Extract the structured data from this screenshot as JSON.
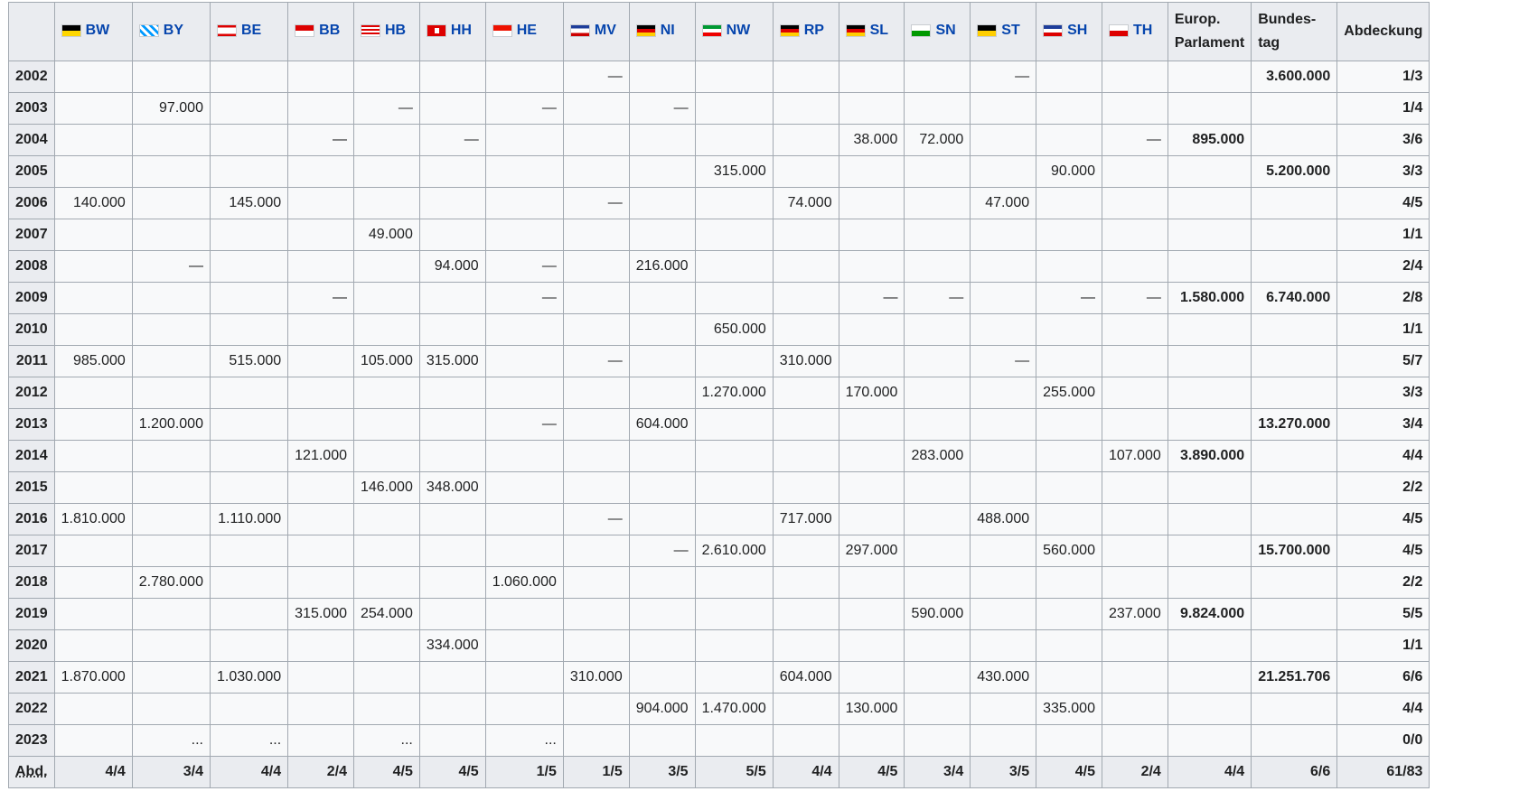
{
  "table": {
    "states": [
      {
        "code": "BW",
        "flag": "baden-wuerttemberg-flag-icon"
      },
      {
        "code": "BY",
        "flag": "bavaria-flag-icon"
      },
      {
        "code": "BE",
        "flag": "berlin-flag-icon"
      },
      {
        "code": "BB",
        "flag": "brandenburg-flag-icon"
      },
      {
        "code": "HB",
        "flag": "bremen-flag-icon"
      },
      {
        "code": "HH",
        "flag": "hamburg-flag-icon"
      },
      {
        "code": "HE",
        "flag": "hesse-flag-icon"
      },
      {
        "code": "MV",
        "flag": "mecklenburg-vorpommern-flag-icon"
      },
      {
        "code": "NI",
        "flag": "lower-saxony-flag-icon"
      },
      {
        "code": "NW",
        "flag": "north-rhine-westphalia-flag-icon"
      },
      {
        "code": "RP",
        "flag": "rhineland-palatinate-flag-icon"
      },
      {
        "code": "SL",
        "flag": "saarland-flag-icon"
      },
      {
        "code": "SN",
        "flag": "saxony-flag-icon"
      },
      {
        "code": "ST",
        "flag": "saxony-anhalt-flag-icon"
      },
      {
        "code": "SH",
        "flag": "schleswig-holstein-flag-icon"
      },
      {
        "code": "TH",
        "flag": "thuringia-flag-icon"
      }
    ],
    "extra_headers": [
      "Europ. Parlament",
      "Bundes-tag",
      "Abdeckung"
    ],
    "rows": [
      {
        "year": "2002",
        "cells": [
          "",
          "",
          "",
          "",
          "",
          "",
          "",
          "—",
          "",
          "",
          "",
          "",
          "",
          "—",
          "",
          "",
          "",
          "3.600.000",
          "1/3"
        ]
      },
      {
        "year": "2003",
        "cells": [
          "",
          "97.000",
          "",
          "",
          "—",
          "",
          "—",
          "",
          "—",
          "",
          "",
          "",
          "",
          "",
          "",
          "",
          "",
          "",
          "1/4"
        ]
      },
      {
        "year": "2004",
        "cells": [
          "",
          "",
          "",
          "—",
          "",
          "—",
          "",
          "",
          "",
          "",
          "",
          "38.000",
          "72.000",
          "",
          "",
          "—",
          "895.000",
          "",
          "3/6"
        ]
      },
      {
        "year": "2005",
        "cells": [
          "",
          "",
          "",
          "",
          "",
          "",
          "",
          "",
          "",
          "315.000",
          "",
          "",
          "",
          "",
          "90.000",
          "",
          "",
          "5.200.000",
          "3/3"
        ]
      },
      {
        "year": "2006",
        "cells": [
          "140.000",
          "",
          "145.000",
          "",
          "",
          "",
          "",
          "—",
          "",
          "",
          "74.000",
          "",
          "",
          "47.000",
          "",
          "",
          "",
          "",
          "4/5"
        ]
      },
      {
        "year": "2007",
        "cells": [
          "",
          "",
          "",
          "",
          "49.000",
          "",
          "",
          "",
          "",
          "",
          "",
          "",
          "",
          "",
          "",
          "",
          "",
          "",
          "1/1"
        ]
      },
      {
        "year": "2008",
        "cells": [
          "",
          "—",
          "",
          "",
          "",
          "94.000",
          "—",
          "",
          "216.000",
          "",
          "",
          "",
          "",
          "",
          "",
          "",
          "",
          "",
          "2/4"
        ]
      },
      {
        "year": "2009",
        "cells": [
          "",
          "",
          "",
          "—",
          "",
          "",
          "—",
          "",
          "",
          "",
          "",
          "—",
          "—",
          "",
          "—",
          "—",
          "1.580.000",
          "6.740.000",
          "2/8"
        ]
      },
      {
        "year": "2010",
        "cells": [
          "",
          "",
          "",
          "",
          "",
          "",
          "",
          "",
          "",
          "650.000",
          "",
          "",
          "",
          "",
          "",
          "",
          "",
          "",
          "1/1"
        ]
      },
      {
        "year": "2011",
        "cells": [
          "985.000",
          "",
          "515.000",
          "",
          "105.000",
          "315.000",
          "",
          "—",
          "",
          "",
          "310.000",
          "",
          "",
          "—",
          "",
          "",
          "",
          "",
          "5/7"
        ]
      },
      {
        "year": "2012",
        "cells": [
          "",
          "",
          "",
          "",
          "",
          "",
          "",
          "",
          "",
          "1.270.000",
          "",
          "170.000",
          "",
          "",
          "255.000",
          "",
          "",
          "",
          "3/3"
        ]
      },
      {
        "year": "2013",
        "cells": [
          "",
          "1.200.000",
          "",
          "",
          "",
          "",
          "—",
          "",
          "604.000",
          "",
          "",
          "",
          "",
          "",
          "",
          "",
          "",
          "13.270.000",
          "3/4"
        ]
      },
      {
        "year": "2014",
        "cells": [
          "",
          "",
          "",
          "121.000",
          "",
          "",
          "",
          "",
          "",
          "",
          "",
          "",
          "283.000",
          "",
          "",
          "107.000",
          "3.890.000",
          "",
          "4/4"
        ]
      },
      {
        "year": "2015",
        "cells": [
          "",
          "",
          "",
          "",
          "146.000",
          "348.000",
          "",
          "",
          "",
          "",
          "",
          "",
          "",
          "",
          "",
          "",
          "",
          "",
          "2/2"
        ]
      },
      {
        "year": "2016",
        "cells": [
          "1.810.000",
          "",
          "1.110.000",
          "",
          "",
          "",
          "",
          "—",
          "",
          "",
          "717.000",
          "",
          "",
          "488.000",
          "",
          "",
          "",
          "",
          "4/5"
        ]
      },
      {
        "year": "2017",
        "cells": [
          "",
          "",
          "",
          "",
          "",
          "",
          "",
          "",
          "—",
          "2.610.000",
          "",
          "297.000",
          "",
          "",
          "560.000",
          "",
          "",
          "15.700.000",
          "4/5"
        ]
      },
      {
        "year": "2018",
        "cells": [
          "",
          "2.780.000",
          "",
          "",
          "",
          "",
          "1.060.000",
          "",
          "",
          "",
          "",
          "",
          "",
          "",
          "",
          "",
          "",
          "",
          "2/2"
        ]
      },
      {
        "year": "2019",
        "cells": [
          "",
          "",
          "",
          "315.000",
          "254.000",
          "",
          "",
          "",
          "",
          "",
          "",
          "",
          "590.000",
          "",
          "",
          "237.000",
          "9.824.000",
          "",
          "5/5"
        ]
      },
      {
        "year": "2020",
        "cells": [
          "",
          "",
          "",
          "",
          "",
          "334.000",
          "",
          "",
          "",
          "",
          "",
          "",
          "",
          "",
          "",
          "",
          "",
          "",
          "1/1"
        ]
      },
      {
        "year": "2021",
        "cells": [
          "1.870.000",
          "",
          "1.030.000",
          "",
          "",
          "",
          "",
          "310.000",
          "",
          "",
          "604.000",
          "",
          "",
          "430.000",
          "",
          "",
          "",
          "21.251.706",
          "6/6"
        ]
      },
      {
        "year": "2022",
        "cells": [
          "",
          "",
          "",
          "",
          "",
          "",
          "",
          "",
          "904.000",
          "1.470.000",
          "",
          "130.000",
          "",
          "",
          "335.000",
          "",
          "",
          "",
          "4/4"
        ]
      },
      {
        "year": "2023",
        "cells": [
          "",
          "...",
          "...",
          "",
          "...",
          "",
          "...",
          "",
          "",
          "",
          "",
          "",
          "",
          "",
          "",
          "",
          "",
          "",
          "0/0"
        ]
      }
    ],
    "footer": {
      "label": "Abd.",
      "cells": [
        "4/4",
        "3/4",
        "4/4",
        "2/4",
        "4/5",
        "4/5",
        "1/5",
        "1/5",
        "3/5",
        "5/5",
        "4/4",
        "4/5",
        "3/4",
        "3/5",
        "4/5",
        "2/4",
        "4/4",
        "6/6",
        "61/83"
      ]
    }
  }
}
